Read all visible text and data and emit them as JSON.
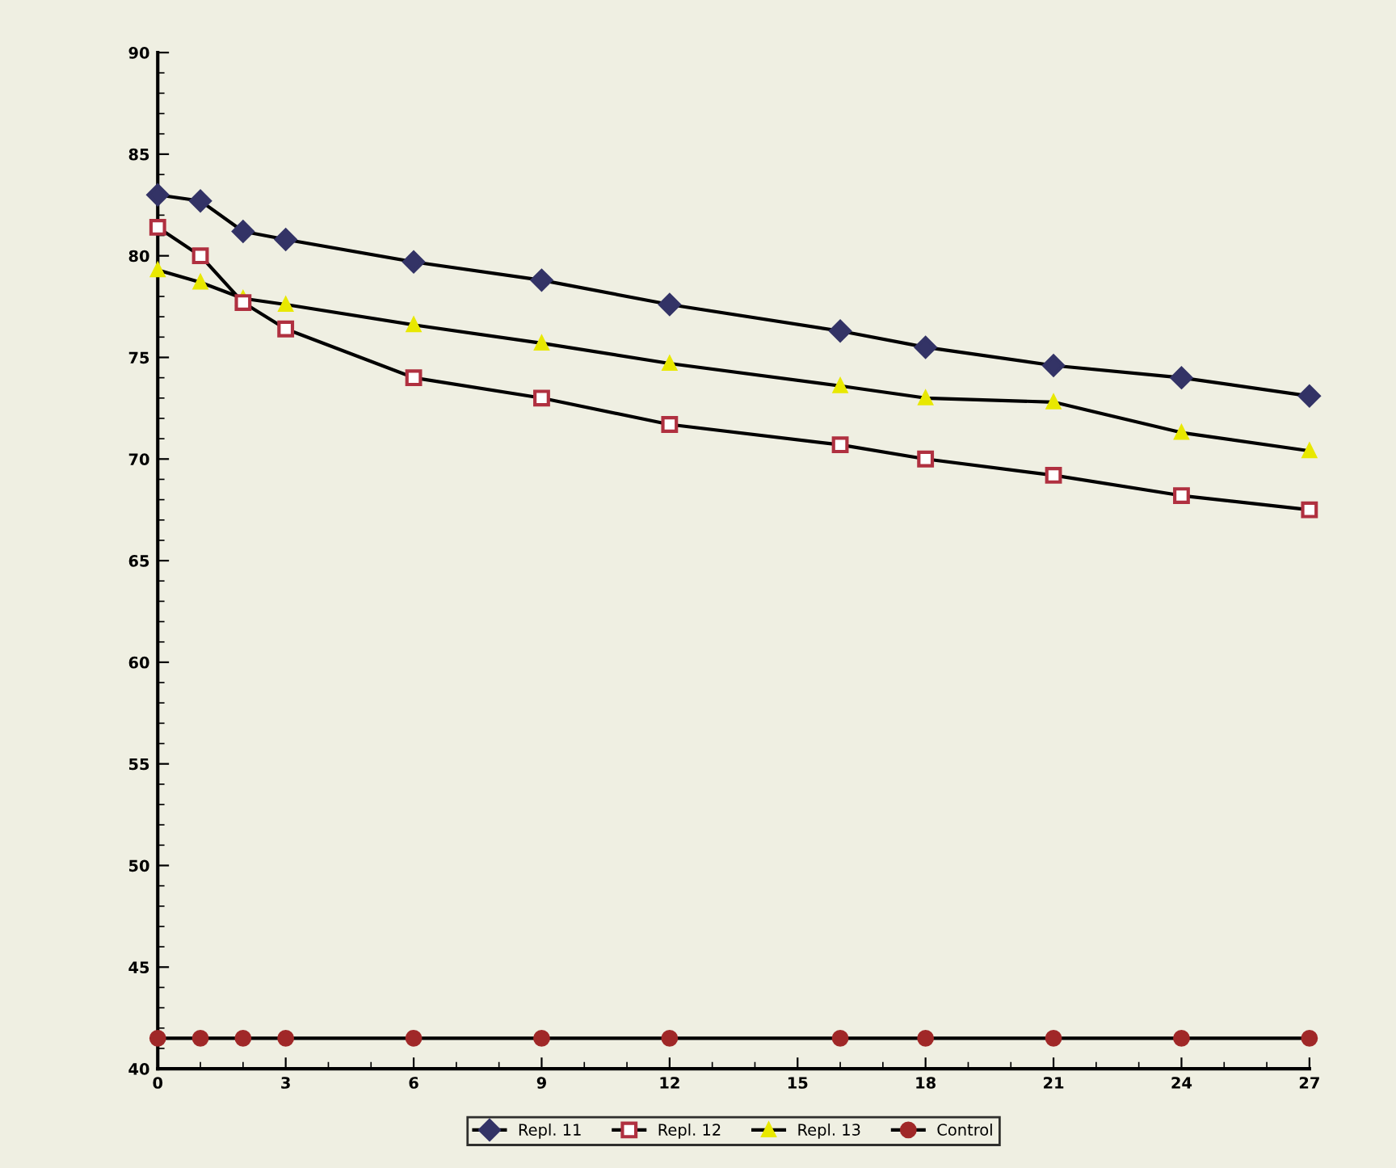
{
  "chart_data": {
    "type": "line",
    "x": [
      0,
      1,
      2,
      3,
      6,
      9,
      12,
      16,
      18,
      21,
      24,
      27
    ],
    "series": [
      {
        "name": "Repl. 11",
        "color": "#333366",
        "marker": "diamond",
        "values": [
          83.0,
          82.7,
          81.2,
          80.8,
          79.7,
          78.8,
          77.6,
          76.3,
          75.5,
          74.6,
          74.0,
          73.1
        ]
      },
      {
        "name": "Repl. 12",
        "color": "#b03040",
        "marker": "square",
        "values": [
          81.4,
          80.0,
          77.7,
          76.4,
          74.0,
          73.0,
          71.7,
          70.7,
          70.0,
          69.2,
          68.2,
          67.5
        ]
      },
      {
        "name": "Repl. 13",
        "color": "#e8e800",
        "marker": "triangle",
        "values": [
          79.3,
          78.7,
          77.9,
          77.6,
          76.6,
          75.7,
          74.7,
          73.6,
          73.0,
          72.8,
          71.3,
          70.4
        ]
      },
      {
        "name": "Control",
        "color": "#a02828",
        "marker": "circle",
        "values": [
          41.5,
          41.5,
          41.5,
          41.5,
          41.5,
          41.5,
          41.5,
          41.5,
          41.5,
          41.5,
          41.5,
          41.5
        ]
      }
    ],
    "xlim": [
      0,
      27
    ],
    "xticks": [
      0,
      3,
      6,
      9,
      12,
      15,
      18,
      21,
      24,
      27
    ],
    "ylim": [
      40,
      90
    ],
    "yticks": [
      40,
      45,
      50,
      55,
      60,
      65,
      70,
      75,
      80,
      85,
      90
    ],
    "grid": false,
    "legend": "bottom",
    "line_style": "solid"
  }
}
